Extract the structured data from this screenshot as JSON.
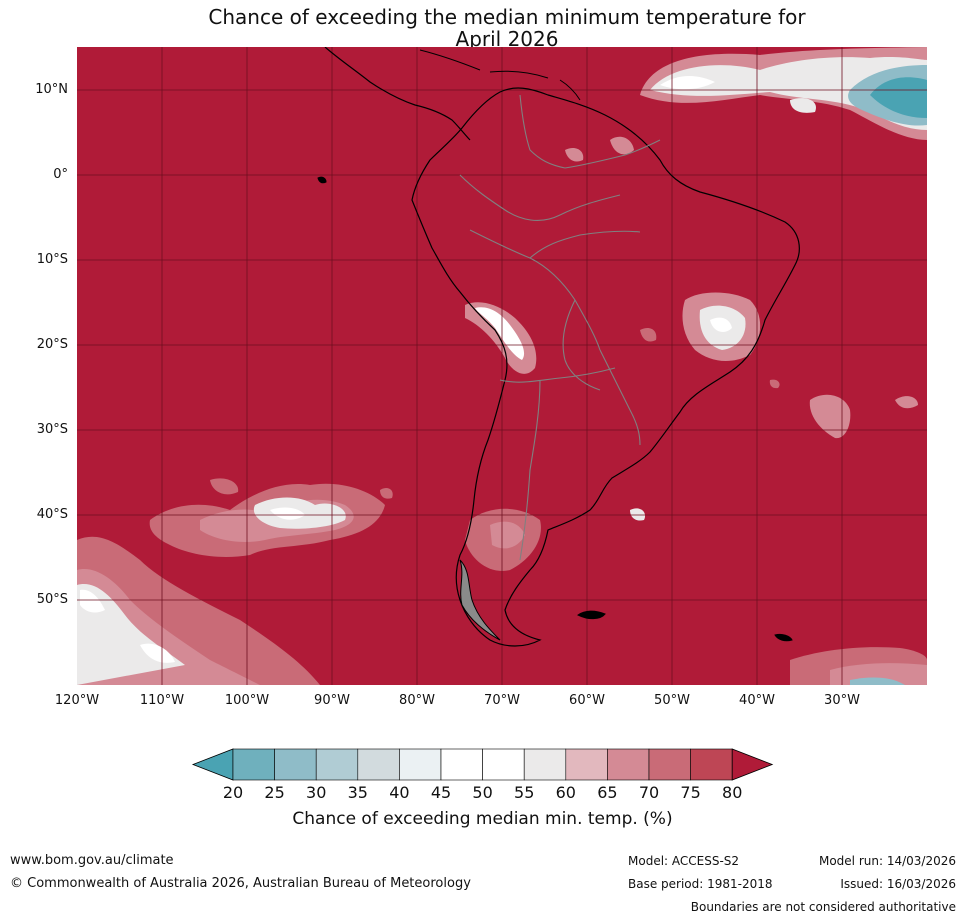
{
  "title_line1": "Chance of exceeding the median minimum temperature for",
  "title_line2": "April 2026",
  "map": {
    "base_color": "#b01b38",
    "land_line_color": "#000000",
    "border_color": "#808080",
    "grid_color": "#6e1020",
    "lat_labels": [
      "10°N",
      "0°",
      "10°S",
      "20°S",
      "30°S",
      "40°S",
      "50°S"
    ],
    "lon_labels": [
      "120°W",
      "110°W",
      "100°W",
      "90°W",
      "80°W",
      "70°W",
      "60°W",
      "50°W",
      "40°W",
      "30°W"
    ]
  },
  "colorbar": {
    "ticks": [
      "20",
      "25",
      "30",
      "35",
      "40",
      "45",
      "50",
      "55",
      "60",
      "65",
      "70",
      "75",
      "80"
    ],
    "colors": [
      "#4aa3b3",
      "#6fb0bd",
      "#8fbcc8",
      "#b0ccd4",
      "#d2dbde",
      "#ebf1f3",
      "#ffffff",
      "#ffffff",
      "#ebeaea",
      "#e2b8be",
      "#d48a95",
      "#c96b77",
      "#be4655",
      "#b01b38"
    ],
    "label": "Chance of exceeding median min. temp. (%)"
  },
  "footer": {
    "url": "www.bom.gov.au/climate",
    "copyright": "© Commonwealth of Australia 2026, Australian Bureau of Meteorology",
    "model": "Model: ACCESS-S2",
    "base_period": "Base period: 1981-2018",
    "model_run": "Model run: 14/03/2026",
    "issued": "Issued: 16/03/2026",
    "disclaimer": "Boundaries are not considered authoritative"
  }
}
